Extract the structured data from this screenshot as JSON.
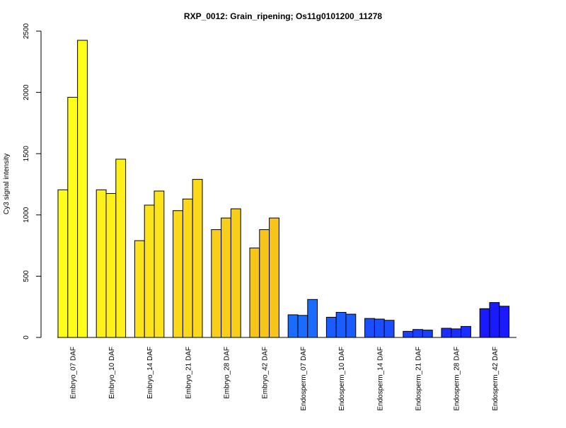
{
  "chart_data": {
    "type": "bar",
    "title": "RXP_0012: Grain_ripening; Os11g0101200_11278",
    "ylabel": "Cy3 signal intensity",
    "xlabel": "",
    "ylim": [
      0,
      2500
    ],
    "yticks": [
      0,
      500,
      1000,
      1500,
      2000,
      2500
    ],
    "grid": false,
    "legend": "none",
    "replicates_per_category": 3,
    "categories": [
      "Embryo_07 DAF",
      "Embryo_10 DAF",
      "Embryo_14 DAF",
      "Embryo_21 DAF",
      "Embryo_28 DAF",
      "Embryo_42 DAF",
      "Endosperm_07 DAF",
      "Endosperm_10 DAF",
      "Endosperm_14 DAF",
      "Endosperm_21 DAF",
      "Endosperm_28 DAF",
      "Endosperm_42 DAF"
    ],
    "values": [
      [
        1205,
        1960,
        2425
      ],
      [
        1205,
        1175,
        1455
      ],
      [
        790,
        1080,
        1195
      ],
      [
        1035,
        1130,
        1290
      ],
      [
        880,
        975,
        1050
      ],
      [
        730,
        880,
        975
      ],
      [
        185,
        180,
        310
      ],
      [
        165,
        205,
        190
      ],
      [
        155,
        150,
        140
      ],
      [
        50,
        65,
        60
      ],
      [
        75,
        70,
        90
      ],
      [
        235,
        285,
        255
      ]
    ],
    "colors": [
      "#FFFF1A",
      "#FFF01A",
      "#FDE31A",
      "#FBD81A",
      "#F9CE1A",
      "#F7C51A",
      "#1A6BFF",
      "#1A5CFF",
      "#1A4EFF",
      "#1A40FF",
      "#1A2EFF",
      "#1A1AFF"
    ]
  }
}
